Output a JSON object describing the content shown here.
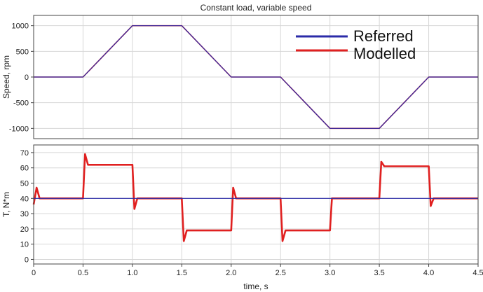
{
  "chart_data": [
    {
      "type": "line",
      "title": "Constant load, variable speed",
      "xlabel": "",
      "ylabel": "Speed, rpm",
      "xlim": [
        0,
        4.5
      ],
      "ylim": [
        -1200,
        1200
      ],
      "x_ticks": [
        0,
        0.5,
        1.0,
        1.5,
        2.0,
        2.5,
        3.0,
        3.5,
        4.0,
        4.5
      ],
      "y_ticks": [
        1000,
        500,
        0,
        -500,
        -1000
      ],
      "grid": true,
      "legend_position": "top-right",
      "series": [
        {
          "name": "Referred",
          "color": "#2b2ba8",
          "x": [
            0,
            0.5,
            1.0,
            1.5,
            2.0,
            2.5,
            3.0,
            3.5,
            4.0,
            4.5
          ],
          "y": [
            0,
            0,
            1000,
            1000,
            0,
            0,
            -1000,
            -1000,
            0,
            0
          ]
        },
        {
          "name": "Modelled",
          "color": "#e02020",
          "x": [
            0,
            0.5,
            1.0,
            1.5,
            2.0,
            2.5,
            3.0,
            3.5,
            4.0,
            4.5
          ],
          "y": [
            0,
            0,
            1000,
            1000,
            0,
            0,
            -1000,
            -1000,
            0,
            0
          ]
        }
      ]
    },
    {
      "type": "line",
      "title": "",
      "xlabel": "time, s",
      "ylabel": "T, N*m",
      "xlim": [
        0,
        4.5
      ],
      "ylim": [
        -3,
        75
      ],
      "x_ticks": [
        0,
        0.5,
        1.0,
        1.5,
        2.0,
        2.5,
        3.0,
        3.5,
        4.0,
        4.5
      ],
      "x_tick_labels": [
        "0",
        "0.5",
        "1.0",
        "1.5",
        "2.0",
        "2.5",
        "3.0",
        "3.5",
        "4.0",
        "4.5"
      ],
      "y_ticks": [
        70,
        60,
        50,
        40,
        30,
        20,
        10,
        0
      ],
      "grid": true,
      "series": [
        {
          "name": "Referred",
          "color": "#2b2ba8",
          "x": [
            0,
            4.5
          ],
          "y": [
            40,
            40
          ]
        },
        {
          "name": "Modelled",
          "color": "#e02020",
          "x": [
            0,
            0.03,
            0.06,
            0.5,
            0.52,
            0.55,
            1.0,
            1.02,
            1.05,
            1.5,
            1.52,
            1.55,
            2.0,
            2.02,
            2.05,
            2.5,
            2.52,
            2.55,
            3.0,
            3.02,
            3.05,
            3.5,
            3.52,
            3.55,
            4.0,
            4.02,
            4.05,
            4.5
          ],
          "y": [
            36,
            47,
            40,
            40,
            69,
            62,
            62,
            33,
            40,
            40,
            12,
            19,
            19,
            47,
            40,
            40,
            12,
            19,
            19,
            40,
            40,
            40,
            64,
            61,
            61,
            35,
            40,
            40
          ]
        }
      ]
    }
  ]
}
